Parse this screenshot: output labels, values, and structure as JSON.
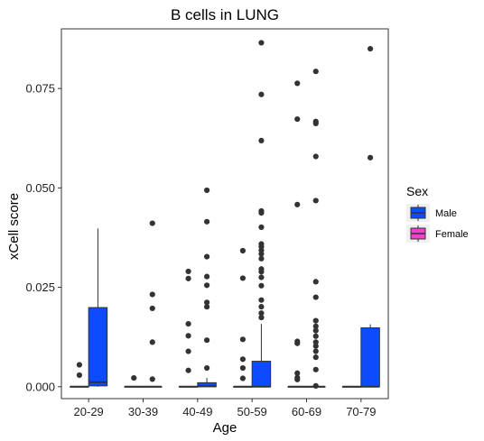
{
  "chart_data": {
    "type": "box",
    "title": "B cells in LUNG",
    "xlabel": "Age",
    "ylabel": "xCell score",
    "categories": [
      "20-29",
      "30-39",
      "40-49",
      "50-59",
      "60-69",
      "70-79"
    ],
    "ylim": [
      -0.003,
      0.09
    ],
    "yticks": [
      0.0,
      0.025,
      0.05,
      0.075
    ],
    "ytick_labels": [
      "0.000",
      "0.025",
      "0.050",
      "0.075"
    ],
    "grid": false,
    "legend": {
      "title": "Sex",
      "position": "right",
      "entries": [
        {
          "label": "Male",
          "color": "#0C4BFF"
        },
        {
          "label": "Female",
          "color": "#F23FD0"
        }
      ]
    },
    "series": [
      {
        "name": "Female",
        "color": "#F23FD0",
        "boxes": [
          {
            "category": "20-29",
            "q1": 0,
            "median": 0,
            "q3": 0,
            "whisker_low": 0,
            "whisker_high": 0,
            "outliers": [
              0.0055,
              0.0029
            ]
          },
          {
            "category": "30-39",
            "q1": 0,
            "median": 0,
            "q3": 0,
            "whisker_low": 0,
            "whisker_high": 0,
            "outliers": [
              0.0022
            ]
          },
          {
            "category": "40-49",
            "q1": 0,
            "median": 0,
            "q3": 0,
            "whisker_low": 0,
            "whisker_high": 0,
            "outliers": [
              0.029,
              0.0272,
              0.0158,
              0.0128,
              0.0089,
              0.0041
            ]
          },
          {
            "category": "50-59",
            "q1": 0,
            "median": 0,
            "q3": 0,
            "whisker_low": 0,
            "whisker_high": 0,
            "outliers": [
              0.0342,
              0.0273,
              0.0119,
              0.0069,
              0.0047,
              0.0021
            ]
          },
          {
            "category": "60-69",
            "q1": 0,
            "median": 0,
            "q3": 0,
            "whisker_low": 0,
            "whisker_high": 0,
            "outliers": [
              0.0763,
              0.0673,
              0.0458,
              0.0114,
              0.0109,
              0.0034,
              0.0023,
              0.0018
            ]
          },
          {
            "category": "70-79",
            "q1": 0,
            "median": 0,
            "q3": 0,
            "whisker_low": 0,
            "whisker_high": 0,
            "outliers": []
          }
        ]
      },
      {
        "name": "Male",
        "color": "#0C4BFF",
        "boxes": [
          {
            "category": "20-29",
            "q1": 0.0002,
            "median": 0.0011,
            "q3": 0.0199,
            "whisker_low": 0,
            "whisker_high": 0.0398,
            "outliers": []
          },
          {
            "category": "30-39",
            "q1": 0,
            "median": 0,
            "q3": 0,
            "whisker_low": 0,
            "whisker_high": 0,
            "outliers": [
              0.0411,
              0.0232,
              0.0197,
              0.0112,
              0.0019
            ]
          },
          {
            "category": "40-49",
            "q1": 0,
            "median": 0.0001,
            "q3": 0.001,
            "whisker_low": 0,
            "whisker_high": 0.0022,
            "outliers": [
              0.0494,
              0.0415,
              0.0327,
              0.0277,
              0.0255,
              0.0212,
              0.0201,
              0.0117,
              0.0047
            ]
          },
          {
            "category": "50-59",
            "q1": 0,
            "median": 0,
            "q3": 0.0064,
            "whisker_low": 0,
            "whisker_high": 0.0158,
            "outliers": [
              0.0865,
              0.0735,
              0.0619,
              0.0442,
              0.0437,
              0.0401,
              0.0359,
              0.0352,
              0.0343,
              0.0334,
              0.0322,
              0.0296,
              0.0289,
              0.0275,
              0.0254,
              0.0218,
              0.0201,
              0.0185,
              0.0174
            ]
          },
          {
            "category": "60-69",
            "q1": 0,
            "median": 0,
            "q3": 0,
            "whisker_low": 0,
            "whisker_high": 0,
            "outliers": [
              0.0793,
              0.0667,
              0.0662,
              0.0579,
              0.0468,
              0.0264,
              0.0225,
              0.0166,
              0.0152,
              0.0141,
              0.0127,
              0.0112,
              0.0102,
              0.0089,
              0.0074,
              0.0043,
              0.0002
            ]
          },
          {
            "category": "70-79",
            "q1": 0,
            "median": 0,
            "q3": 0.0148,
            "whisker_low": 0,
            "whisker_high": 0.0157,
            "outliers": [
              0.085,
              0.0576
            ]
          }
        ]
      }
    ]
  }
}
